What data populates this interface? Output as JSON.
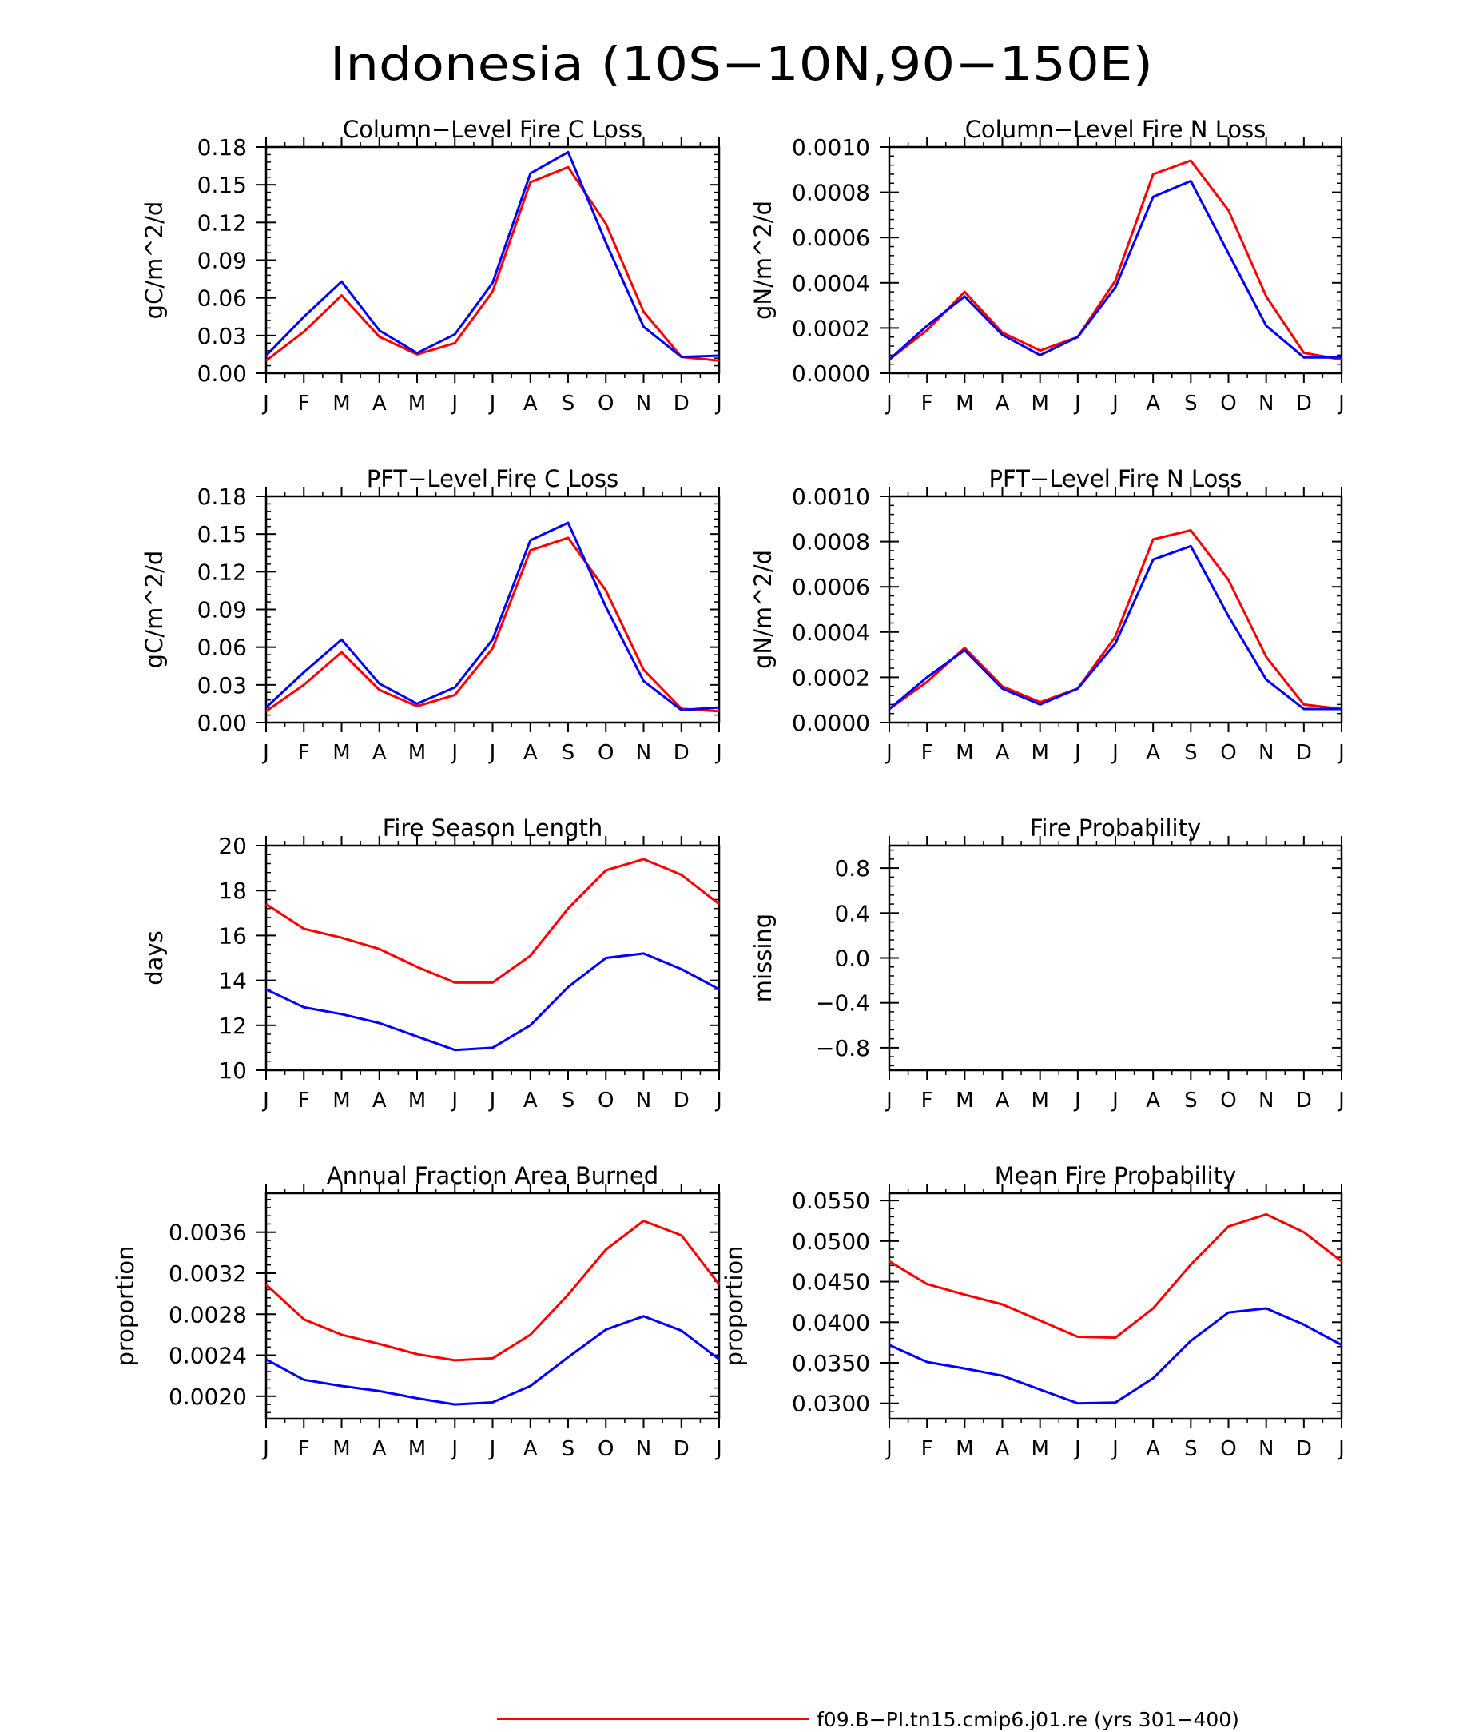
{
  "figure": {
    "title": "Indonesia (10S−10N,90−150E)",
    "legend_entry": "f09.B−PI.tn15.cmip6.j01.re (yrs 301−400)",
    "series_colors": {
      "red": "#ff0000",
      "blue": "#0000ff"
    }
  },
  "chart_data": [
    {
      "type": "line",
      "title": "Column−Level Fire C Loss",
      "ylabel": "gC/m^2/d",
      "x": [
        "J",
        "F",
        "M",
        "A",
        "M",
        "J",
        "J",
        "A",
        "S",
        "O",
        "N",
        "D",
        "J"
      ],
      "ylim": [
        0,
        0.18
      ],
      "yticks": [
        "0.00",
        "0.03",
        "0.06",
        "0.09",
        "0.12",
        "0.15",
        "0.18"
      ],
      "series": [
        {
          "color": "#ff0000",
          "values": [
            0.01,
            0.033,
            0.062,
            0.029,
            0.015,
            0.024,
            0.065,
            0.152,
            0.164,
            0.119,
            0.049,
            0.013,
            0.01
          ]
        },
        {
          "color": "#0000ff",
          "values": [
            0.014,
            0.045,
            0.073,
            0.034,
            0.016,
            0.031,
            0.072,
            0.159,
            0.176,
            0.104,
            0.037,
            0.013,
            0.014
          ]
        }
      ]
    },
    {
      "type": "line",
      "title": "Column−Level Fire N Loss",
      "ylabel": "gN/m^2/d",
      "x": [
        "J",
        "F",
        "M",
        "A",
        "M",
        "J",
        "J",
        "A",
        "S",
        "O",
        "N",
        "D",
        "J"
      ],
      "ylim": [
        0,
        0.001
      ],
      "yticks": [
        "0.0000",
        "0.0002",
        "0.0004",
        "0.0006",
        "0.0008",
        "0.0010"
      ],
      "series": [
        {
          "color": "#ff0000",
          "values": [
            6e-05,
            0.00019,
            0.00036,
            0.00018,
            0.0001,
            0.00016,
            0.00041,
            0.00088,
            0.00094,
            0.00072,
            0.00034,
            9e-05,
            6e-05
          ]
        },
        {
          "color": "#0000ff",
          "values": [
            6e-05,
            0.00021,
            0.00034,
            0.00017,
            8e-05,
            0.00016,
            0.00038,
            0.00078,
            0.00085,
            0.00053,
            0.00021,
            7e-05,
            7e-05
          ]
        }
      ]
    },
    {
      "type": "line",
      "title": "PFT−Level Fire C Loss",
      "ylabel": "gC/m^2/d",
      "x": [
        "J",
        "F",
        "M",
        "A",
        "M",
        "J",
        "J",
        "A",
        "S",
        "O",
        "N",
        "D",
        "J"
      ],
      "ylim": [
        0,
        0.18
      ],
      "yticks": [
        "0.00",
        "0.03",
        "0.06",
        "0.09",
        "0.12",
        "0.15",
        "0.18"
      ],
      "series": [
        {
          "color": "#ff0000",
          "values": [
            0.009,
            0.03,
            0.056,
            0.026,
            0.013,
            0.022,
            0.059,
            0.137,
            0.147,
            0.105,
            0.042,
            0.011,
            0.009
          ]
        },
        {
          "color": "#0000ff",
          "values": [
            0.012,
            0.04,
            0.066,
            0.031,
            0.015,
            0.028,
            0.066,
            0.145,
            0.159,
            0.092,
            0.033,
            0.01,
            0.012
          ]
        }
      ]
    },
    {
      "type": "line",
      "title": "PFT−Level Fire N Loss",
      "ylabel": "gN/m^2/d",
      "x": [
        "J",
        "F",
        "M",
        "A",
        "M",
        "J",
        "J",
        "A",
        "S",
        "O",
        "N",
        "D",
        "J"
      ],
      "ylim": [
        0,
        0.001
      ],
      "yticks": [
        "0.0000",
        "0.0002",
        "0.0004",
        "0.0006",
        "0.0008",
        "0.0010"
      ],
      "series": [
        {
          "color": "#ff0000",
          "values": [
            6e-05,
            0.00018,
            0.00033,
            0.00016,
            9e-05,
            0.00015,
            0.00038,
            0.00081,
            0.00085,
            0.00063,
            0.00029,
            8e-05,
            6e-05
          ]
        },
        {
          "color": "#0000ff",
          "values": [
            6e-05,
            0.0002,
            0.00032,
            0.00015,
            8e-05,
            0.00015,
            0.00035,
            0.00072,
            0.00078,
            0.00047,
            0.00019,
            6e-05,
            6e-05
          ]
        }
      ]
    },
    {
      "type": "line",
      "title": "Fire Season Length",
      "ylabel": "days",
      "x": [
        "J",
        "F",
        "M",
        "A",
        "M",
        "J",
        "J",
        "A",
        "S",
        "O",
        "N",
        "D",
        "J"
      ],
      "ylim": [
        10,
        20
      ],
      "yticks": [
        "10",
        "12",
        "14",
        "16",
        "18",
        "20"
      ],
      "series": [
        {
          "color": "#ff0000",
          "values": [
            17.4,
            16.3,
            15.9,
            15.4,
            14.6,
            13.9,
            13.9,
            15.1,
            17.2,
            18.9,
            19.4,
            18.7,
            17.4
          ]
        },
        {
          "color": "#0000ff",
          "values": [
            13.6,
            12.8,
            12.5,
            12.1,
            11.5,
            10.9,
            11.0,
            12.0,
            13.7,
            15.0,
            15.2,
            14.5,
            13.6
          ]
        }
      ]
    },
    {
      "type": "line",
      "title": "Fire Probability",
      "ylabel": "missing",
      "x": [
        "J",
        "F",
        "M",
        "A",
        "M",
        "J",
        "J",
        "A",
        "S",
        "O",
        "N",
        "D",
        "J"
      ],
      "ylim": [
        -1,
        1
      ],
      "yticks": [
        "−0.8",
        "−0.4",
        "0.0",
        "0.4",
        "0.8"
      ],
      "series": []
    },
    {
      "type": "line",
      "title": "Annual Fraction Area Burned",
      "ylabel": "proportion",
      "x": [
        "J",
        "F",
        "M",
        "A",
        "M",
        "J",
        "J",
        "A",
        "S",
        "O",
        "N",
        "D",
        "J"
      ],
      "ylim": [
        0.00178,
        0.00398
      ],
      "yticks": [
        "0.0020",
        "0.0024",
        "0.0028",
        "0.0032",
        "0.0036"
      ],
      "series": [
        {
          "color": "#ff0000",
          "values": [
            0.00309,
            0.00275,
            0.0026,
            0.00251,
            0.00241,
            0.00235,
            0.00237,
            0.0026,
            0.00299,
            0.00343,
            0.00371,
            0.00357,
            0.00309
          ]
        },
        {
          "color": "#0000ff",
          "values": [
            0.00236,
            0.00216,
            0.0021,
            0.00205,
            0.00198,
            0.00192,
            0.00194,
            0.0021,
            0.00238,
            0.00265,
            0.00278,
            0.00264,
            0.00236
          ]
        }
      ]
    },
    {
      "type": "line",
      "title": "Mean Fire Probability",
      "ylabel": "proportion",
      "x": [
        "J",
        "F",
        "M",
        "A",
        "M",
        "J",
        "J",
        "A",
        "S",
        "O",
        "N",
        "D",
        "J"
      ],
      "ylim": [
        0.0281,
        0.0559
      ],
      "yticks": [
        "0.0300",
        "0.0350",
        "0.0400",
        "0.0450",
        "0.0500",
        "0.0550"
      ],
      "series": [
        {
          "color": "#ff0000",
          "values": [
            0.0475,
            0.0447,
            0.0434,
            0.0422,
            0.0402,
            0.0382,
            0.0381,
            0.0417,
            0.0471,
            0.0518,
            0.0533,
            0.0511,
            0.0475
          ]
        },
        {
          "color": "#0000ff",
          "values": [
            0.0372,
            0.0351,
            0.0343,
            0.0334,
            0.0317,
            0.03,
            0.0301,
            0.0331,
            0.0377,
            0.0412,
            0.0417,
            0.0397,
            0.0372
          ]
        }
      ]
    }
  ]
}
